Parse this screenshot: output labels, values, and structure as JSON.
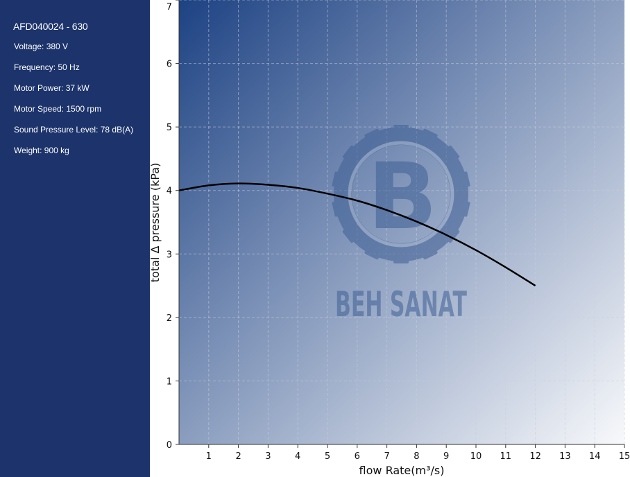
{
  "product": {
    "title": "AFD040024 - 630",
    "specs": [
      {
        "label": "Voltage: 380 V"
      },
      {
        "label": "Frequency: 50 Hz"
      },
      {
        "label": "Motor Power: 37 kW"
      },
      {
        "label": "Motor Speed: 1500 rpm"
      },
      {
        "label": "Sound Pressure Level: 78 dB(A)"
      },
      {
        "label": "Weight: 900 kg"
      }
    ]
  },
  "watermark": {
    "brand": "BEH SANAT",
    "logo_letter": "B"
  },
  "colors": {
    "sidebar": "#1c336b",
    "gradient_dark": "#1d4283",
    "gradient_light": "#f8f9fb",
    "curve": "#000000",
    "watermark": "#3e5f94"
  },
  "chart_data": {
    "type": "line",
    "xlabel": "flow Rate(m³/s)",
    "ylabel": "total Δ pressure (kPa)",
    "xlim": [
      0,
      15
    ],
    "ylim": [
      0,
      7
    ],
    "xticks": [
      1,
      2,
      3,
      4,
      5,
      6,
      7,
      8,
      9,
      10,
      11,
      12,
      13,
      14,
      15
    ],
    "yticks": [
      0,
      1,
      2,
      3,
      4,
      5,
      6,
      7
    ],
    "grid": true,
    "series": [
      {
        "x": [
          0,
          1,
          2,
          3,
          4,
          5,
          6,
          7,
          8,
          9,
          10,
          11,
          12
        ],
        "y": [
          4.0,
          4.08,
          4.11,
          4.09,
          4.04,
          3.95,
          3.84,
          3.69,
          3.51,
          3.3,
          3.06,
          2.79,
          2.5
        ]
      }
    ]
  }
}
